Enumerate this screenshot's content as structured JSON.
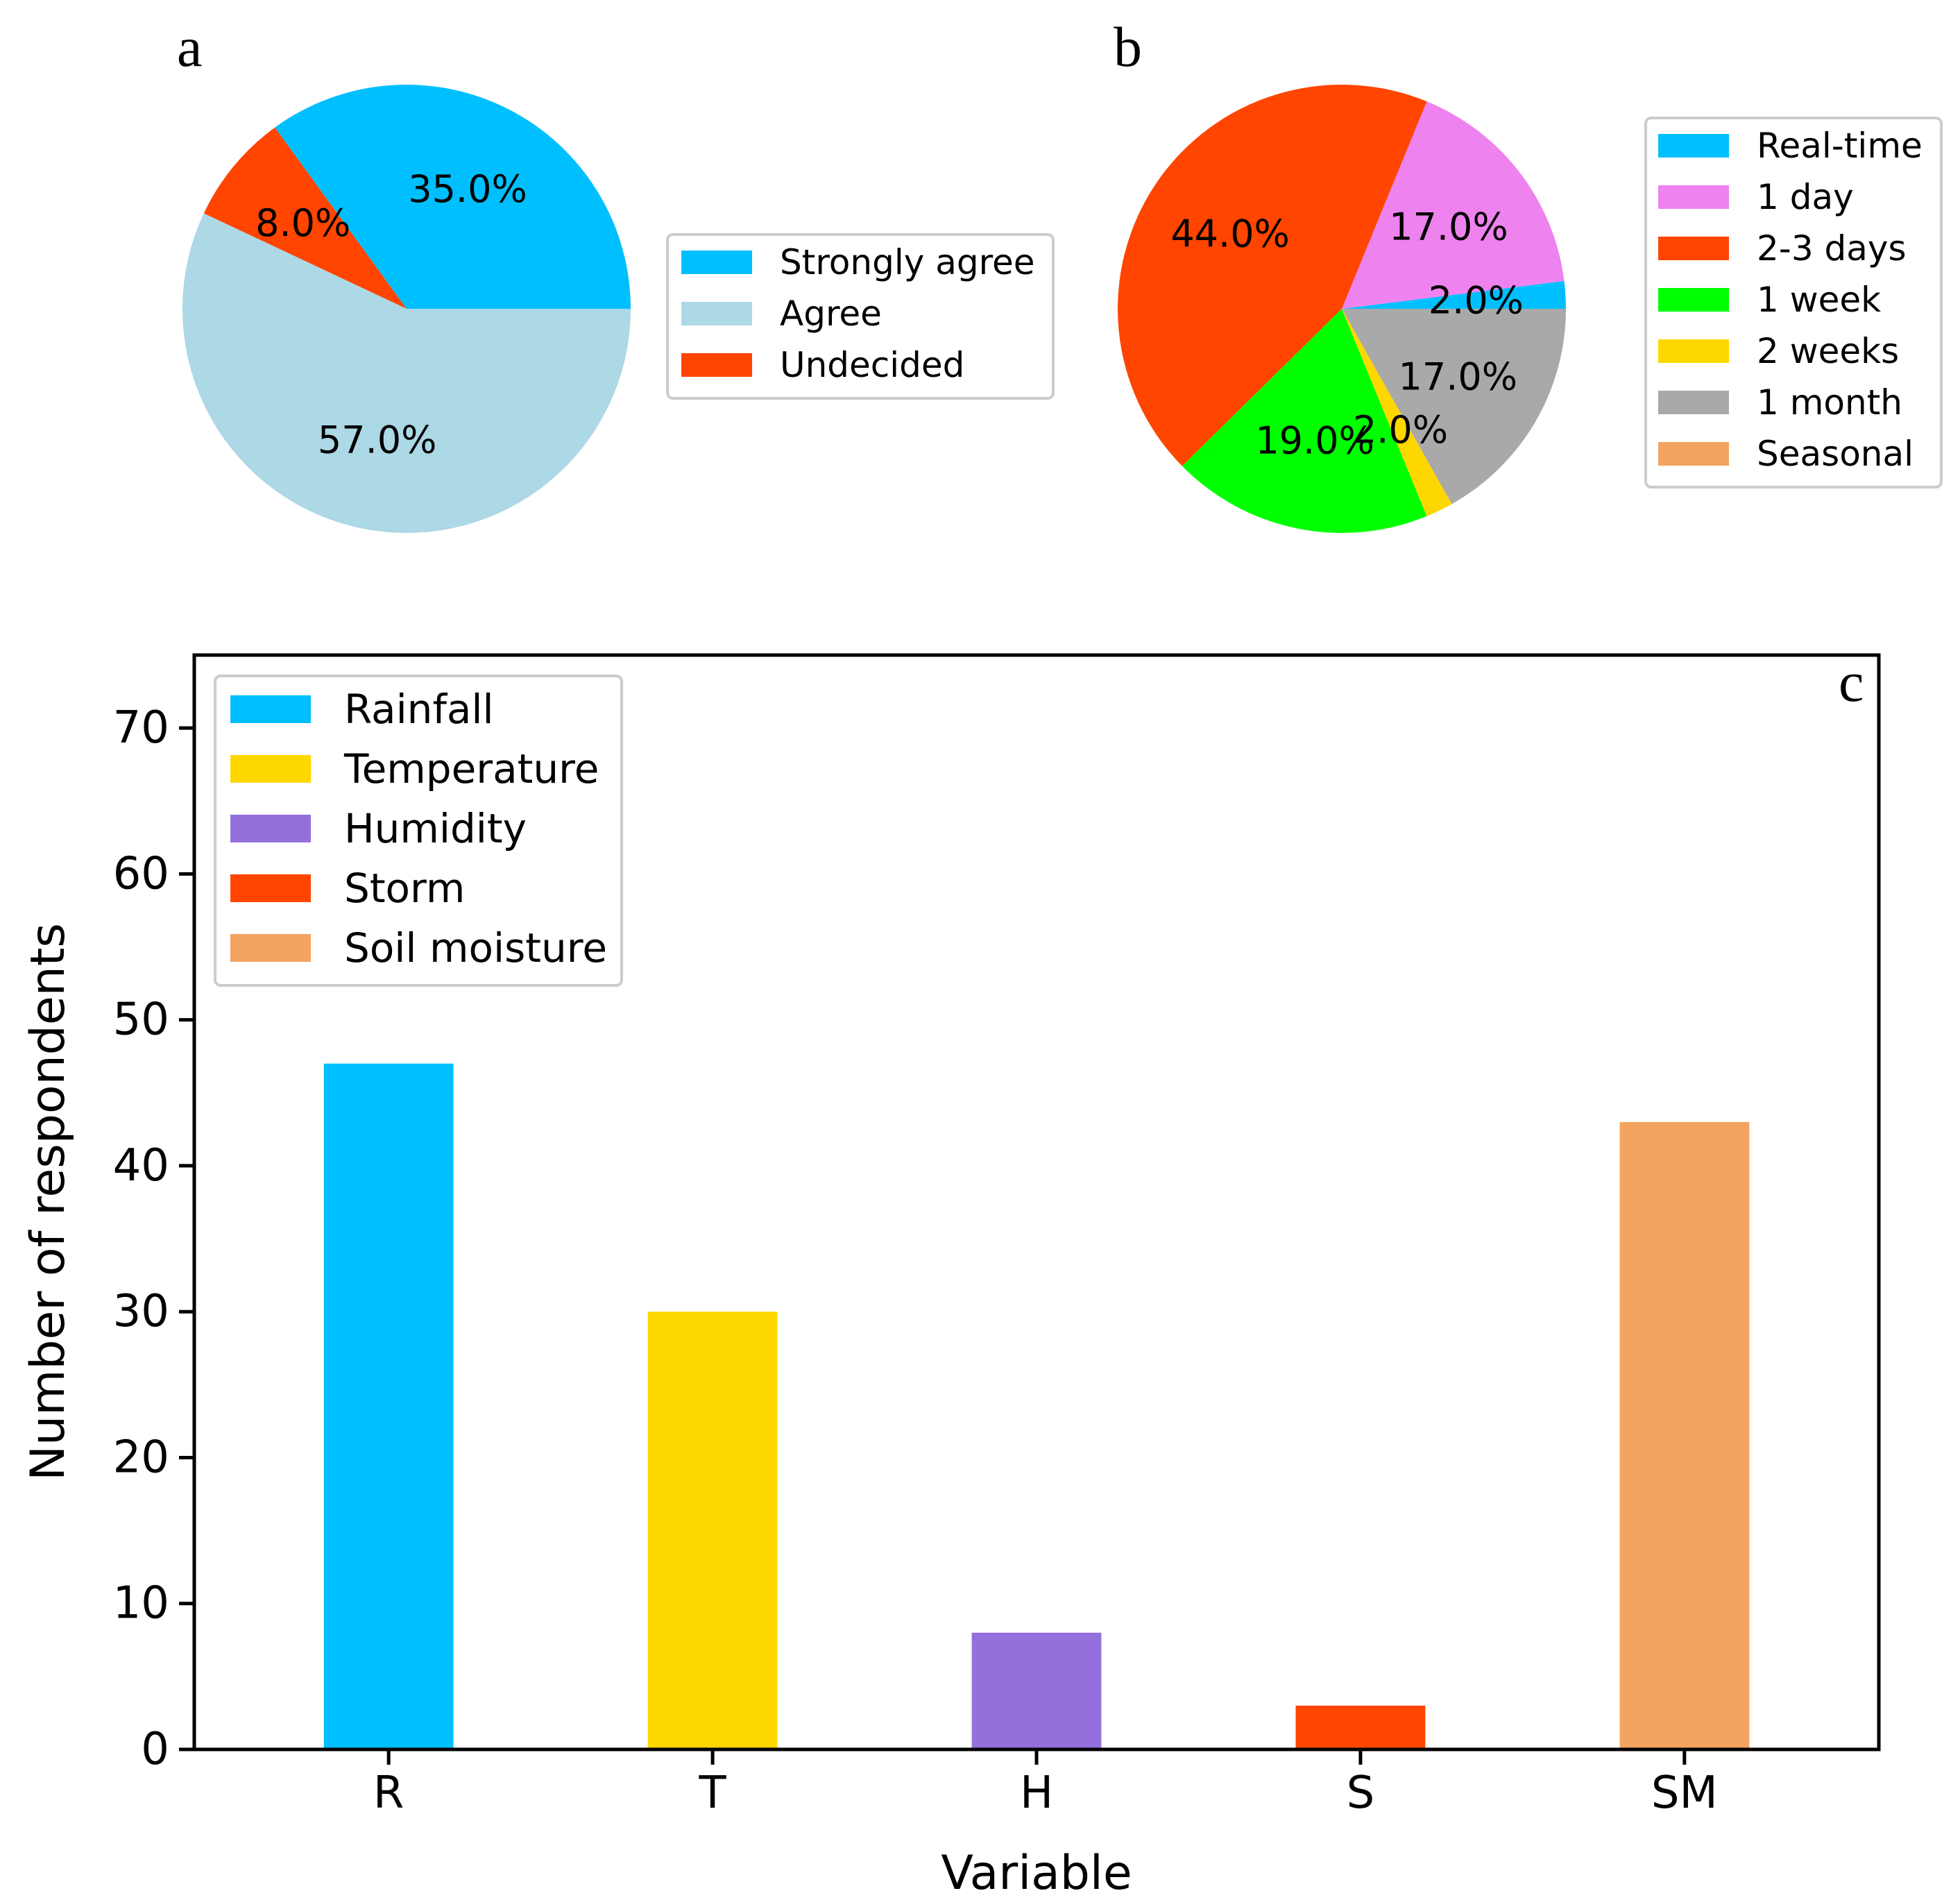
{
  "chart_data": [
    {
      "panel": "a",
      "type": "pie",
      "slices": [
        {
          "label": "Strongly agree",
          "value": 35.0,
          "pct_label": "35.0%",
          "color": "#00BFFF"
        },
        {
          "label": "Undecided",
          "value": 8.0,
          "pct_label": "8.0%",
          "color": "#FF4500"
        },
        {
          "label": "Agree",
          "value": 57.0,
          "pct_label": "57.0%",
          "color": "#ADD8E6"
        }
      ],
      "legend": [
        {
          "label": "Strongly agree",
          "color": "#00BFFF"
        },
        {
          "label": "Agree",
          "color": "#ADD8E6"
        },
        {
          "label": "Undecided",
          "color": "#FF4500"
        }
      ],
      "legend_placement": "right"
    },
    {
      "panel": "b",
      "type": "pie",
      "slices": [
        {
          "label": "Real-time",
          "value": 2.0,
          "pct_label": "2.0%",
          "color": "#00BFFF"
        },
        {
          "label": "1 day",
          "value": 17.0,
          "pct_label": "17.0%",
          "color": "#EE82EE"
        },
        {
          "label": "2-3 days",
          "value": 44.0,
          "pct_label": "44.0%",
          "color": "#FF4500"
        },
        {
          "label": "1 week",
          "value": 19.0,
          "pct_label": "19.0%",
          "color": "#00FF00"
        },
        {
          "label": "2 weeks",
          "value": 2.0,
          "pct_label": "2.0%",
          "color": "#FFD700"
        },
        {
          "label": "1 month",
          "value": 17.0,
          "pct_label": "17.0%",
          "color": "#A9A9A9"
        }
      ],
      "legend": [
        {
          "label": "Real-time",
          "color": "#00BFFF"
        },
        {
          "label": "1 day",
          "color": "#EE82EE"
        },
        {
          "label": "2-3 days",
          "color": "#FF4500"
        },
        {
          "label": "1 week",
          "color": "#00FF00"
        },
        {
          "label": "2 weeks",
          "color": "#FFD700"
        },
        {
          "label": "1 month",
          "color": "#A9A9A9"
        },
        {
          "label": "Seasonal",
          "color": "#F4A460"
        }
      ],
      "legend_placement": "right"
    },
    {
      "panel": "c",
      "type": "bar",
      "categories": [
        "R",
        "T",
        "H",
        "S",
        "SM"
      ],
      "values": [
        47,
        30,
        8,
        3,
        43
      ],
      "colors": [
        "#00BFFF",
        "#FFD700",
        "#9370DB",
        "#FF4500",
        "#F4A460"
      ],
      "xlabel": "Variable",
      "ylabel": "Number of respondents",
      "ylim": [
        0,
        75
      ],
      "yticks": [
        0,
        10,
        20,
        30,
        40,
        50,
        60,
        70
      ],
      "grid": false,
      "legend": [
        {
          "label": "Rainfall",
          "color": "#00BFFF"
        },
        {
          "label": "Temperature",
          "color": "#FFD700"
        },
        {
          "label": "Humidity",
          "color": "#9370DB"
        },
        {
          "label": "Storm",
          "color": "#FF4500"
        },
        {
          "label": "Soil moisture",
          "color": "#F4A460"
        }
      ],
      "legend_placement": "top-left"
    }
  ]
}
